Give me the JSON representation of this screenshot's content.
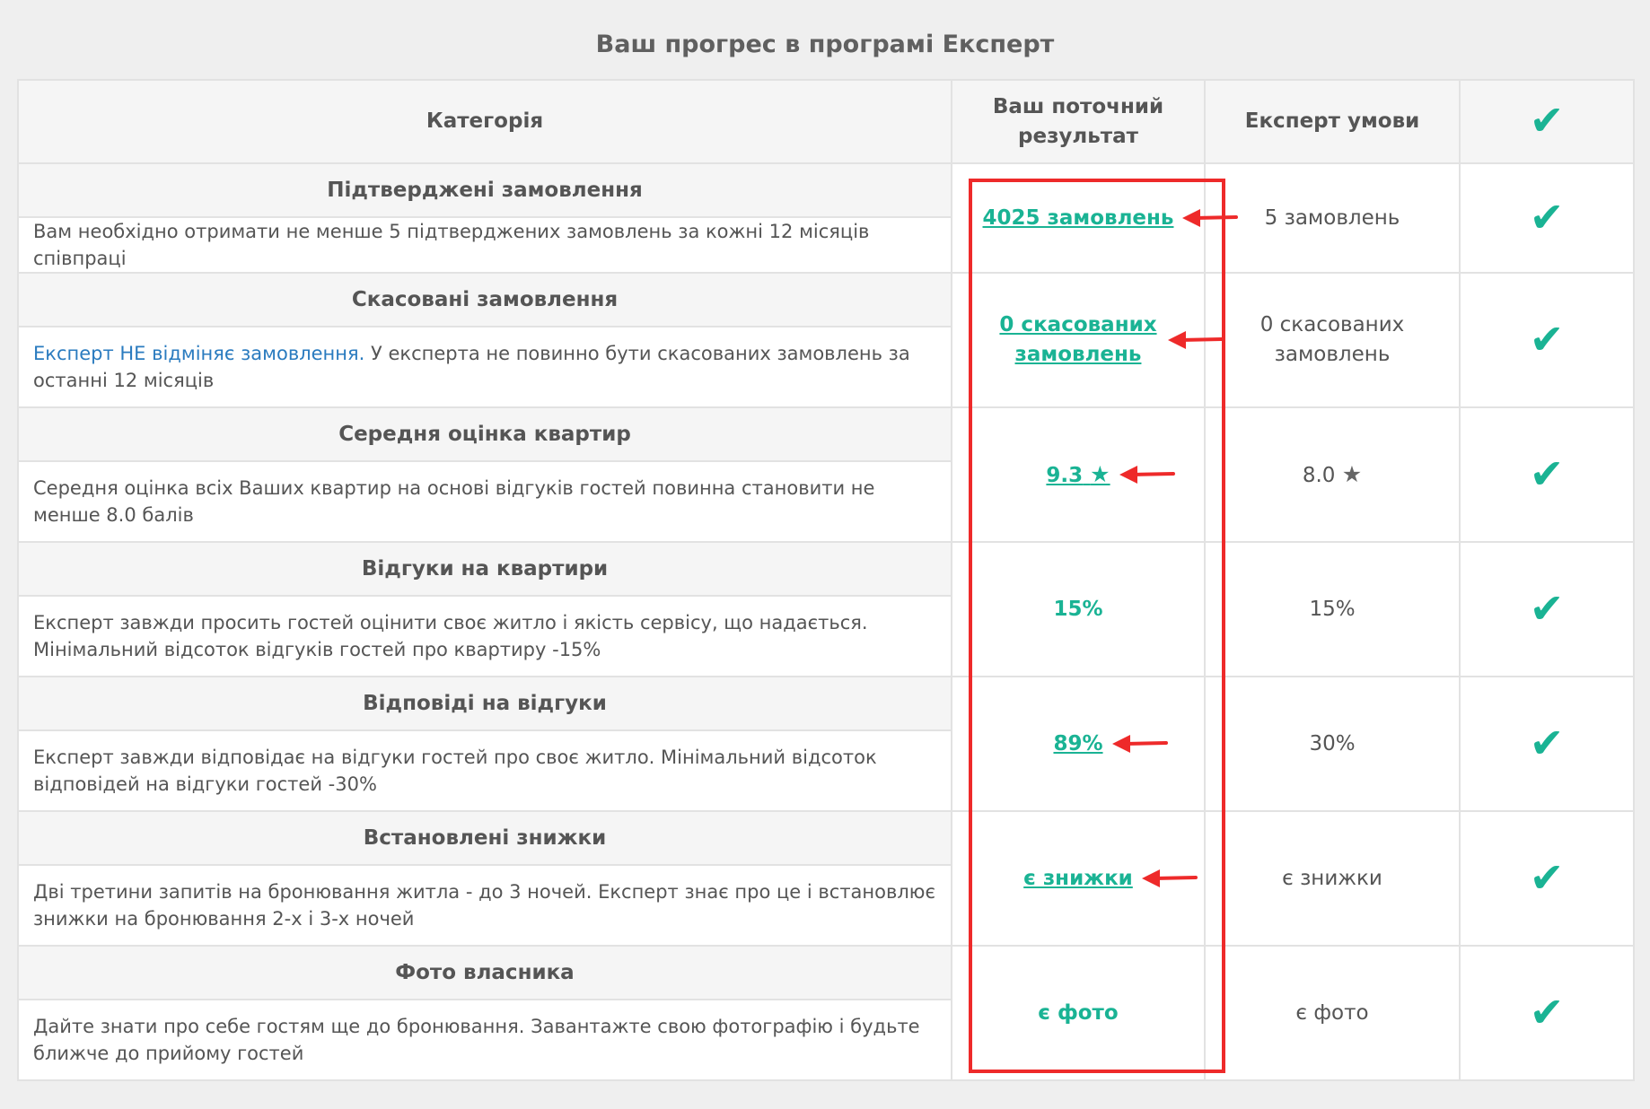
{
  "title": "Ваш прогрес в програмі Експерт",
  "headers": {
    "category": "Категорія",
    "current_result": "Ваш поточний результат",
    "expert_conditions": "Експерт умови",
    "status": "✔"
  },
  "rows": [
    {
      "title": "Підтверджені замовлення",
      "desc": "Вам необхідно отримати не менше 5 підтверджених замовлень за кожні 12 місяців співпраці",
      "desc_link": "",
      "current": "4025 замовлень",
      "current_is_link": true,
      "condition": "5 замовлень",
      "status": "✔",
      "has_arrow": true
    },
    {
      "title": "Скасовані замовлення",
      "desc": "У експерта не повинно бути скасованих замовлень за останні 12 місяців",
      "desc_link": "Експерт НЕ відміняє замовлення.",
      "current": "0 скасованих замовлень",
      "current_is_link": true,
      "condition": "0 скасованих замовлень",
      "status": "✔",
      "has_arrow": true
    },
    {
      "title": "Середня оцінка квартир",
      "desc": "Середня оцінка всіх Ваших квартир на основі відгуків гостей повинна становити не менше 8.0 балів",
      "desc_link": "",
      "current": "9.3",
      "current_star": "★",
      "current_is_link": true,
      "condition": "8.0",
      "condition_star": "★",
      "status": "✔",
      "has_arrow": true
    },
    {
      "title": "Відгуки на квартири",
      "desc": "Експерт завжди просить гостей оцінити своє житло і якість сервісу, що надається. Мінімальний відсоток відгуків гостей про квартиру -15%",
      "desc_link": "",
      "current": "15%",
      "current_is_link": false,
      "condition": "15%",
      "status": "✔",
      "has_arrow": false
    },
    {
      "title": "Відповіді на відгуки",
      "desc": "Експерт завжди відповідає на відгуки гостей про своє житло. Мінімальний відсоток відповідей на відгуки гостей -30%",
      "desc_link": "",
      "current": "89%",
      "current_is_link": true,
      "condition": "30%",
      "status": "✔",
      "has_arrow": true
    },
    {
      "title": "Встановлені знижки",
      "desc": "Дві третини запитів на бронювання житла - до 3 ночей. Експерт знає про це і встановлює знижки на бронювання 2-х і 3-х ночей",
      "desc_link": "",
      "current": "є знижки",
      "current_is_link": true,
      "condition": "є знижки",
      "status": "✔",
      "has_arrow": true
    },
    {
      "title": "Фото власника",
      "desc": "Дайте знати про себе гостям ще до бронювання. Завантажте свою фотографію і будьте ближче до прийому гостей",
      "desc_link": "",
      "current": "є фото",
      "current_is_link": false,
      "condition": "є фото",
      "status": "✔",
      "has_arrow": false
    }
  ],
  "colors": {
    "accent": "#1ab394",
    "annotation": "#ee2a2a",
    "link_blue": "#2a7bbf",
    "header_bg": "#f5f5f5"
  }
}
